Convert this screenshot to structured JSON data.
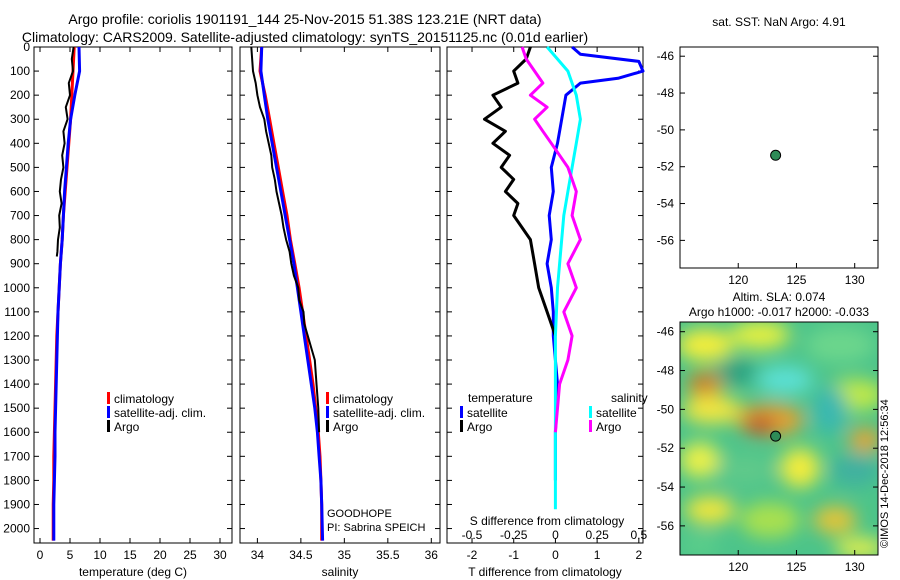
{
  "header": {
    "line1": "Argo profile: coriolis 1901191_144 25-Nov-2015 51.38S 123.21E (NRT data)",
    "line2": "Climatology: CARS2009. Satellite-adjusted climatology: synTS_20151125.nc (0.01d earlier)"
  },
  "colors": {
    "climatology": "#ff0000",
    "satellite": "#0000ff",
    "argo": "#000000",
    "sat_salinity": "#00ffff",
    "argo_salinity": "#ff00ff",
    "marker": "#2e8b57"
  },
  "depth_ticks": [
    "0",
    "100",
    "200",
    "300",
    "400",
    "500",
    "600",
    "700",
    "800",
    "900",
    "1000",
    "1100",
    "1200",
    "1300",
    "1400",
    "1500",
    "1600",
    "1700",
    "1800",
    "1900",
    "2000"
  ],
  "chart_data": [
    {
      "type": "line",
      "id": "temperature",
      "xlabel": "temperature (deg C)",
      "ylabel": "depth",
      "xlim": [
        -1,
        32
      ],
      "ylim": [
        2060,
        0
      ],
      "xticks": [
        "0",
        "5",
        "10",
        "15",
        "20",
        "25",
        "30"
      ],
      "xtick_values": [
        0,
        5,
        10,
        15,
        20,
        25,
        30
      ],
      "legend": [
        "climatology",
        "satellite-adj. clim.",
        "Argo"
      ],
      "series": [
        {
          "name": "climatology",
          "color": "#ff0000",
          "width": 3,
          "x": [
            5.7,
            5.5,
            5.3,
            5.1,
            4.8,
            4.5,
            4.2,
            3.9,
            3.7,
            3.4,
            3.2,
            3.0,
            2.8,
            2.7,
            2.6,
            2.5,
            2.4,
            2.3,
            2.3,
            2.2,
            2.2
          ],
          "y": [
            0,
            100,
            200,
            300,
            400,
            500,
            600,
            700,
            800,
            900,
            1000,
            1100,
            1200,
            1300,
            1400,
            1500,
            1600,
            1700,
            1800,
            1900,
            2050
          ]
        },
        {
          "name": "satellite-adj. clim.",
          "color": "#0000ff",
          "width": 3,
          "x": [
            6.5,
            6.6,
            5.8,
            5.1,
            4.7,
            4.4,
            4.1,
            3.9,
            3.7,
            3.4,
            3.2,
            3.0,
            2.9,
            2.8,
            2.7,
            2.6,
            2.5,
            2.5,
            2.4,
            2.3,
            2.3
          ],
          "y": [
            0,
            100,
            200,
            300,
            400,
            500,
            600,
            700,
            800,
            900,
            1000,
            1100,
            1200,
            1300,
            1400,
            1500,
            1600,
            1700,
            1800,
            1900,
            2050
          ]
        },
        {
          "name": "Argo",
          "color": "#000000",
          "width": 2,
          "x": [
            5.6,
            5.3,
            5.5,
            4.8,
            5.0,
            4.3,
            4.6,
            3.9,
            4.1,
            3.7,
            3.9,
            3.5,
            3.3,
            3.6,
            3.2,
            3.3,
            3.0,
            2.9,
            2.8
          ],
          "y": [
            0,
            50,
            100,
            150,
            200,
            250,
            300,
            350,
            400,
            450,
            500,
            550,
            600,
            650,
            700,
            750,
            800,
            850,
            870
          ]
        }
      ]
    },
    {
      "type": "line",
      "id": "salinity",
      "xlabel": "salinity",
      "ylabel": "depth",
      "xlim": [
        33.8,
        36.1
      ],
      "ylim": [
        2060,
        0
      ],
      "xticks": [
        "34",
        "34.5",
        "35",
        "35.5",
        "36"
      ],
      "xtick_values": [
        34,
        34.5,
        35,
        35.5,
        36
      ],
      "legend": [
        "climatology",
        "satellite-adj. clim.",
        "Argo"
      ],
      "annotation": [
        "GOODHOPE",
        "PI: Sabrina SPEICH"
      ],
      "series": [
        {
          "name": "climatology",
          "color": "#ff0000",
          "width": 3,
          "x": [
            34.05,
            34.03,
            34.09,
            34.14,
            34.19,
            34.24,
            34.29,
            34.34,
            34.38,
            34.43,
            34.48,
            34.52,
            34.56,
            34.6,
            34.64,
            34.67,
            34.7,
            34.72,
            34.73,
            34.74,
            34.74
          ],
          "y": [
            0,
            100,
            200,
            300,
            400,
            500,
            600,
            700,
            800,
            900,
            1000,
            1100,
            1200,
            1300,
            1400,
            1500,
            1600,
            1700,
            1800,
            1900,
            2050
          ]
        },
        {
          "name": "satellite-adj. clim.",
          "color": "#0000ff",
          "width": 3,
          "x": [
            34.05,
            34.04,
            34.08,
            34.12,
            34.17,
            34.22,
            34.27,
            34.32,
            34.37,
            34.42,
            34.46,
            34.5,
            34.54,
            34.58,
            34.62,
            34.66,
            34.69,
            34.71,
            34.73,
            34.74,
            34.75
          ],
          "y": [
            0,
            100,
            200,
            300,
            400,
            500,
            600,
            700,
            800,
            900,
            1000,
            1100,
            1200,
            1300,
            1400,
            1500,
            1600,
            1700,
            1800,
            1900,
            2050
          ]
        },
        {
          "name": "Argo",
          "color": "#000000",
          "width": 2,
          "x": [
            33.93,
            33.95,
            33.98,
            34.0,
            34.03,
            34.08,
            34.1,
            34.13,
            34.16,
            34.17,
            34.2,
            34.22,
            34.25,
            34.28,
            34.3,
            34.33,
            34.37,
            34.39,
            34.42,
            34.47,
            34.48,
            34.53,
            34.54,
            34.58,
            34.62,
            34.66,
            34.68,
            34.7,
            34.71
          ],
          "y": [
            0,
            100,
            150,
            200,
            250,
            300,
            350,
            400,
            450,
            500,
            550,
            600,
            650,
            700,
            750,
            800,
            850,
            900,
            950,
            1000,
            1050,
            1100,
            1150,
            1200,
            1250,
            1300,
            1400,
            1500,
            1600
          ]
        }
      ]
    },
    {
      "type": "line",
      "id": "difference",
      "xlabel": "T difference from climatology",
      "xlabel_top": "S difference from climatology",
      "ylabel": "depth",
      "xlim": [
        -2.6,
        2.1
      ],
      "ylim": [
        2060,
        0
      ],
      "xticks": [
        "-2",
        "-1",
        "0",
        "1",
        "2"
      ],
      "xtick_values": [
        -2,
        -1,
        0,
        1,
        2
      ],
      "s_ticks": [
        "-0.5",
        "-0.25",
        "0",
        "0.25",
        "0.5"
      ],
      "s_tick_positions": [
        -2,
        -1,
        0,
        1,
        2
      ],
      "legend_temperature_title": "temperature",
      "legend_salinity_title": "salinity",
      "legend_temperature": [
        "satellite",
        "Argo"
      ],
      "legend_salinity": [
        "satellite",
        "Argo"
      ],
      "series": [
        {
          "name": "temperature satellite",
          "color": "#0000ff",
          "width": 3,
          "x": [
            0.4,
            0.6,
            2.0,
            2.1,
            1.5,
            0.6,
            0.25,
            0.15,
            0.05,
            -0.1,
            -0.05,
            -0.15,
            -0.1,
            -0.2,
            -0.1,
            -0.05,
            -0.05,
            0.0,
            0.05,
            0.0,
            0.0
          ],
          "y": [
            0,
            30,
            60,
            100,
            130,
            150,
            200,
            300,
            400,
            500,
            600,
            700,
            800,
            900,
            1000,
            1100,
            1200,
            1300,
            1400,
            1600,
            1800
          ]
        },
        {
          "name": "temperature Argo",
          "color": "#000000",
          "width": 3,
          "x": [
            -0.6,
            -0.7,
            -1.0,
            -0.9,
            -1.5,
            -1.3,
            -1.7,
            -1.2,
            -1.5,
            -1.1,
            -1.3,
            -1.0,
            -1.2,
            -0.9,
            -1.0,
            -0.8,
            -0.6,
            -0.5,
            -0.4,
            -0.2,
            0.0
          ],
          "y": [
            0,
            50,
            100,
            150,
            200,
            250,
            300,
            350,
            400,
            450,
            500,
            550,
            600,
            650,
            700,
            750,
            800,
            900,
            1000,
            1100,
            1200
          ]
        },
        {
          "name": "salinity satellite",
          "color": "#00ffff",
          "width": 3,
          "x": [
            -0.2,
            0.3,
            0.5,
            0.6,
            0.5,
            0.4,
            0.3,
            0.2,
            0.15,
            0.1,
            0.05,
            0.0,
            0.0
          ],
          "y": [
            0,
            100,
            200,
            300,
            400,
            500,
            600,
            700,
            800,
            900,
            1000,
            1200,
            1920
          ]
        },
        {
          "name": "salinity Argo",
          "color": "#ff00ff",
          "width": 3,
          "x": [
            -0.8,
            -0.7,
            -0.5,
            -0.3,
            -0.6,
            -0.2,
            -0.5,
            -0.3,
            -0.1,
            0.1,
            0.3,
            0.5,
            0.4,
            0.6,
            0.3,
            0.5,
            0.2,
            0.4,
            0.3,
            0.1,
            0.05,
            0.0
          ],
          "y": [
            0,
            50,
            100,
            150,
            200,
            250,
            300,
            350,
            400,
            450,
            500,
            600,
            700,
            800,
            900,
            1000,
            1100,
            1200,
            1300,
            1400,
            1500,
            1600
          ]
        }
      ]
    },
    {
      "type": "scatter",
      "id": "sst_map",
      "title": "sat. SST: NaN Argo: 4.91",
      "xlim": [
        115,
        132
      ],
      "ylim": [
        -57.5,
        -45.5
      ],
      "xticks": [
        "120",
        "125",
        "130"
      ],
      "xtick_values": [
        120,
        125,
        130
      ],
      "yticks": [
        "-46",
        "-48",
        "-50",
        "-52",
        "-54",
        "-56"
      ],
      "ytick_values": [
        -46,
        -48,
        -50,
        -52,
        -54,
        -56
      ],
      "points": [
        {
          "x": 123.21,
          "y": -51.38
        }
      ]
    },
    {
      "type": "heatmap",
      "id": "sla_map",
      "title": "Altim. SLA: 0.074",
      "subtitle": "Argo h1000: -0.017 h2000: -0.033",
      "xlim": [
        115,
        132
      ],
      "ylim": [
        -57.5,
        -45.5
      ],
      "xticks": [
        "120",
        "125",
        "130"
      ],
      "xtick_values": [
        120,
        125,
        130
      ],
      "yticks": [
        "-46",
        "-48",
        "-50",
        "-52",
        "-54",
        "-56"
      ],
      "ytick_values": [
        -46,
        -48,
        -50,
        -52,
        -54,
        -56
      ],
      "points": [
        {
          "x": 123.21,
          "y": -51.38
        }
      ],
      "vertical_label": "©IMOS 14-Dec-2018 12:56:34"
    }
  ]
}
